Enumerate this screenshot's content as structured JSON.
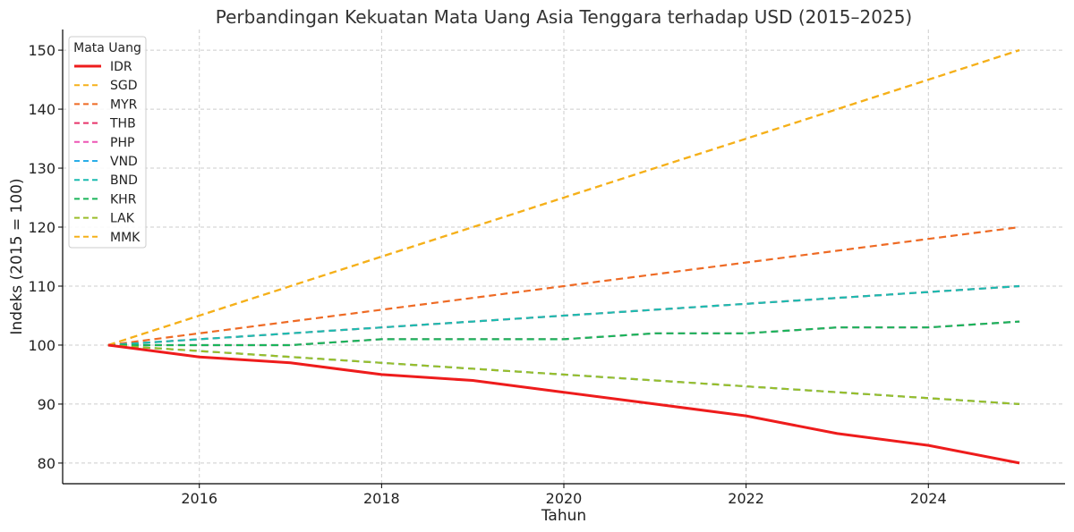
{
  "chart_data": {
    "type": "line",
    "title": "Perbandingan Kekuatan Mata Uang Asia Tenggara terhadap USD (2015–2025)",
    "xlabel": "Tahun",
    "ylabel": "Indeks (2015 = 100)",
    "xlim": [
      2014.5,
      2025.5
    ],
    "ylim": [
      76.5,
      153.5
    ],
    "xticks": [
      2016,
      2018,
      2020,
      2022,
      2024
    ],
    "yticks": [
      80,
      90,
      100,
      110,
      120,
      130,
      140,
      150
    ],
    "grid": true,
    "legend": {
      "title": "Mata Uang",
      "placement": "top-left"
    },
    "x": [
      2015,
      2016,
      2017,
      2018,
      2019,
      2020,
      2021,
      2022,
      2023,
      2024,
      2025
    ],
    "series": [
      {
        "name": "IDR",
        "color": "#ee1c1c",
        "style": "solid",
        "values": [
          100,
          98,
          97,
          95,
          94,
          92,
          90,
          88,
          85,
          83,
          80
        ]
      },
      {
        "name": "SGD",
        "color": "#f5b01a",
        "style": "dashed",
        "values": [
          100,
          105,
          110,
          115,
          120,
          125,
          130,
          135,
          140,
          145,
          150
        ]
      },
      {
        "name": "MYR",
        "color": "#ee6a24",
        "style": "dashed",
        "values": [
          100,
          102,
          104,
          106,
          108,
          110,
          112,
          114,
          116,
          118,
          120
        ]
      },
      {
        "name": "THB",
        "color": "#e8336b",
        "style": "dashed",
        "values": [
          100,
          101,
          102,
          103,
          104,
          105,
          106,
          107,
          108,
          109,
          110
        ]
      },
      {
        "name": "PHP",
        "color": "#ee55b5",
        "style": "dashed",
        "values": [
          100,
          100,
          100,
          101,
          101,
          101,
          102,
          102,
          103,
          103,
          104
        ]
      },
      {
        "name": "VND",
        "color": "#2aaee8",
        "style": "dashed",
        "values": [
          100,
          99,
          98,
          97,
          96,
          95,
          94,
          93,
          92,
          91,
          90
        ]
      },
      {
        "name": "BND",
        "color": "#1cbcb0",
        "style": "dashed",
        "values": [
          100,
          101,
          102,
          103,
          104,
          105,
          106,
          107,
          108,
          109,
          110
        ]
      },
      {
        "name": "KHR",
        "color": "#1ab55a",
        "style": "dashed",
        "values": [
          100,
          100,
          100,
          101,
          101,
          101,
          102,
          102,
          103,
          103,
          104
        ]
      },
      {
        "name": "LAK",
        "color": "#9bbd2a",
        "style": "dashed",
        "values": [
          100,
          99,
          98,
          97,
          96,
          95,
          94,
          93,
          92,
          91,
          90
        ]
      },
      {
        "name": "MMK",
        "color": "#f5b01a",
        "style": "dashed",
        "values": [
          100,
          105,
          110,
          115,
          120,
          125,
          130,
          135,
          140,
          145,
          150
        ]
      }
    ]
  }
}
